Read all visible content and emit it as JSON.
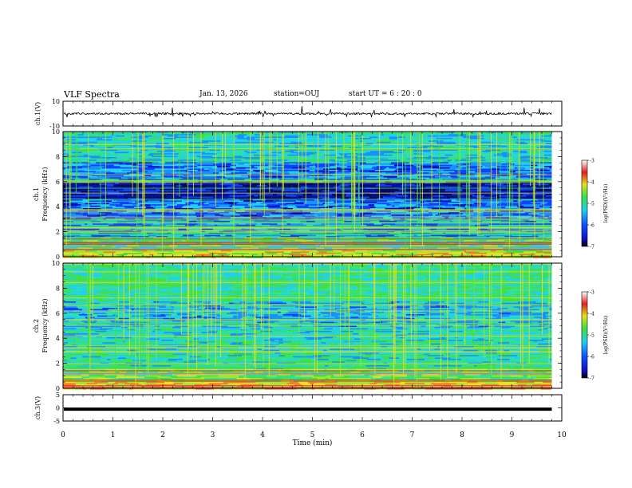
{
  "header": {
    "title": "VLF Spectra",
    "date": "Jan. 13, 2026",
    "station": "station=OUJ",
    "start_ut": "start UT =  6 : 20 : 0"
  },
  "chart_data": [
    {
      "type": "line",
      "panel": "ch1-waveform",
      "ylabel": "ch.1(V)",
      "ylim": [
        -10,
        10
      ],
      "yticks": [
        "10",
        "-10"
      ],
      "xlim": [
        0,
        10
      ],
      "trace_color": "#000000"
    },
    {
      "type": "heatmap",
      "panel": "ch1-spectrogram",
      "ylabel_line1": "ch.1",
      "ylabel_line2": "Frequency (kHz)",
      "ylim": [
        0,
        10
      ],
      "yticks": [
        "0",
        "2",
        "4",
        "6",
        "8",
        "10"
      ],
      "xlim": [
        0,
        10
      ],
      "data_end_min": 9.8,
      "colorbar": {
        "label": "log(PSD)(V²/Hz)",
        "range": [
          -7,
          -3
        ],
        "ticks": [
          "-3",
          "-4",
          "-5",
          "-6",
          "-7"
        ]
      }
    },
    {
      "type": "heatmap",
      "panel": "ch2-spectrogram",
      "ylabel_line1": "ch.2",
      "ylabel_line2": "Frequency (kHz)",
      "ylim": [
        0,
        10
      ],
      "yticks": [
        "0",
        "2",
        "4",
        "6",
        "8",
        "10"
      ],
      "xlim": [
        0,
        10
      ],
      "data_end_min": 9.8,
      "colorbar": {
        "label": "log(PSD)(V²/Hz)",
        "range": [
          -7,
          -3
        ],
        "ticks": [
          "-3",
          "-4",
          "-5",
          "-6",
          "-7"
        ]
      }
    },
    {
      "type": "line",
      "panel": "ch3-waveform",
      "ylabel": "ch.3(V)",
      "ylim": [
        -5,
        5
      ],
      "yticks": [
        "5",
        "0",
        "-5"
      ],
      "xlim": [
        0,
        10
      ],
      "constant_value": -0.5,
      "trace_color": "#000000"
    }
  ],
  "x_axis": {
    "label": "Time (min)",
    "ticks": [
      "0",
      "1",
      "2",
      "3",
      "4",
      "5",
      "6",
      "7",
      "8",
      "9",
      "10"
    ]
  },
  "colors": {
    "dark_blue": "#000a80",
    "blue": "#1040ff",
    "cyan": "#20d0f0",
    "green": "#40e060",
    "yellow": "#e8e020",
    "red": "#e02020"
  }
}
